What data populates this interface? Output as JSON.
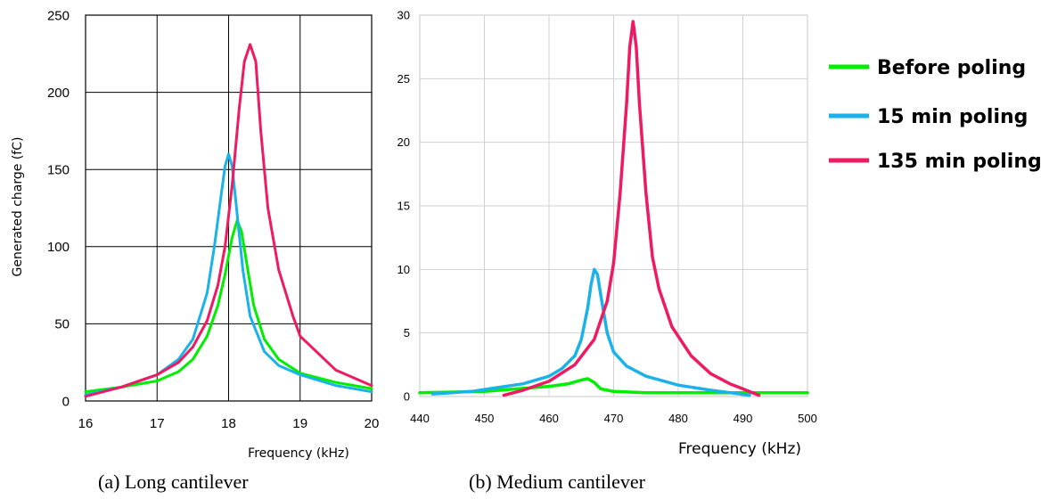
{
  "chart_data": [
    {
      "type": "line",
      "panel": "a",
      "caption": "(a)  Long cantilever",
      "xlabel": "Frequency (kHz)",
      "ylabel": "Generated charge (fC)",
      "xlim": [
        16,
        20
      ],
      "ylim": [
        0,
        250
      ],
      "xticks": [
        "16",
        "17",
        "18",
        "19",
        "20"
      ],
      "yticks": [
        "0",
        "50",
        "100",
        "150",
        "200",
        "250"
      ],
      "grid": true,
      "series": [
        {
          "name": "Before poling",
          "color": "#00ee00",
          "x": [
            16.0,
            16.5,
            17.0,
            17.3,
            17.5,
            17.7,
            17.85,
            17.95,
            18.05,
            18.12,
            18.18,
            18.25,
            18.35,
            18.5,
            18.7,
            19.0,
            19.5,
            20.0
          ],
          "y": [
            6,
            9,
            13,
            19,
            27,
            42,
            62,
            82,
            106,
            117,
            110,
            90,
            62,
            40,
            27,
            18,
            12,
            8
          ]
        },
        {
          "name": "15 min  poling",
          "color": "#1ab2e8",
          "x": [
            16.0,
            16.5,
            17.0,
            17.3,
            17.5,
            17.7,
            17.8,
            17.9,
            17.95,
            18.0,
            18.05,
            18.1,
            18.2,
            18.3,
            18.5,
            18.7,
            19.0,
            19.5,
            20.0
          ],
          "y": [
            4,
            9,
            17,
            27,
            40,
            70,
            100,
            135,
            152,
            160,
            152,
            130,
            85,
            55,
            32,
            23,
            17,
            10,
            6
          ]
        },
        {
          "name": "135 min poling",
          "color": "#ee1a62",
          "x": [
            16.0,
            16.5,
            17.0,
            17.3,
            17.5,
            17.7,
            17.85,
            17.95,
            18.05,
            18.15,
            18.22,
            18.3,
            18.38,
            18.45,
            18.55,
            18.7,
            18.9,
            19.0,
            19.5,
            20.0
          ],
          "y": [
            3,
            9,
            17,
            25,
            35,
            52,
            75,
            100,
            140,
            190,
            220,
            231,
            220,
            175,
            125,
            85,
            55,
            42,
            20,
            10
          ]
        }
      ]
    },
    {
      "type": "line",
      "panel": "b",
      "caption": "(b) Medium cantilever",
      "xlabel": "Frequency (kHz)",
      "ylabel": "",
      "xlim": [
        440,
        500
      ],
      "ylim": [
        0,
        30
      ],
      "xticks": [
        "440",
        "450",
        "460",
        "470",
        "480",
        "490",
        "500"
      ],
      "yticks": [
        "0",
        "5",
        "10",
        "15",
        "20",
        "25",
        "30"
      ],
      "grid": true,
      "series": [
        {
          "name": "Before poling",
          "color": "#00ee00",
          "x": [
            440,
            450,
            455,
            460,
            463,
            465,
            466,
            467,
            468,
            470,
            475,
            480,
            490,
            500
          ],
          "y": [
            0.3,
            0.4,
            0.6,
            0.8,
            1.0,
            1.3,
            1.4,
            1.1,
            0.6,
            0.4,
            0.3,
            0.3,
            0.3,
            0.3
          ]
        },
        {
          "name": "15 min  poling",
          "color": "#1ab2e8",
          "x": [
            442,
            448,
            452,
            456,
            460,
            462,
            464,
            465,
            466,
            466.5,
            467,
            467.5,
            468,
            469,
            470,
            472,
            475,
            480,
            485,
            488,
            491
          ],
          "y": [
            0.2,
            0.4,
            0.7,
            1.0,
            1.6,
            2.2,
            3.2,
            4.5,
            7.0,
            8.8,
            10.0,
            9.6,
            8.0,
            5.0,
            3.5,
            2.4,
            1.6,
            0.9,
            0.5,
            0.3,
            0.1
          ]
        },
        {
          "name": "135 min poling",
          "color": "#ee1a62",
          "x": [
            453,
            456,
            460,
            464,
            467,
            469,
            470,
            471,
            472,
            472.5,
            473,
            473.5,
            474,
            475,
            476,
            477,
            479,
            482,
            485,
            488,
            490,
            492.5
          ],
          "y": [
            0.1,
            0.5,
            1.2,
            2.5,
            4.5,
            7.5,
            10.5,
            16.0,
            23.0,
            27.5,
            29.5,
            27.5,
            23.0,
            16.0,
            11.0,
            8.5,
            5.5,
            3.2,
            1.8,
            1.0,
            0.6,
            0.1
          ]
        }
      ]
    }
  ],
  "legend": {
    "placement": "right",
    "items": [
      {
        "label": "Before poling",
        "color": "#00ee00"
      },
      {
        "label": "15 min  poling",
        "color": "#1ab2e8"
      },
      {
        "label": "135 min poling",
        "color": "#ee1a62"
      }
    ]
  }
}
